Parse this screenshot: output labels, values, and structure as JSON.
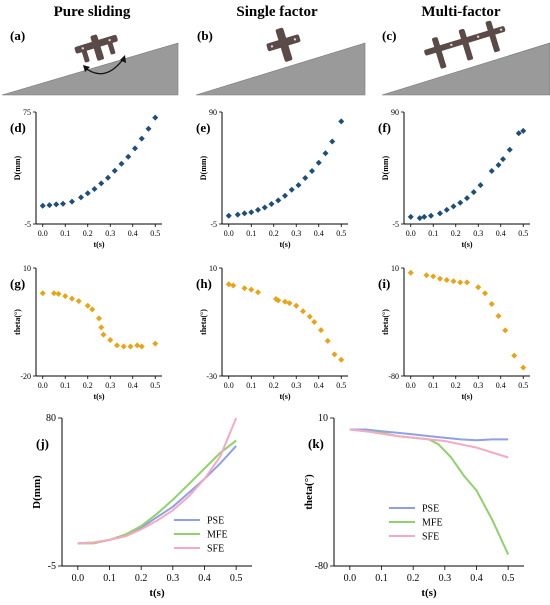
{
  "figure": {
    "column_titles": [
      "Pure sliding",
      "Single factor",
      "Multi-factor"
    ],
    "top_letters": [
      "(a)",
      "(b)",
      "(c)"
    ]
  },
  "colors": {
    "slope": "#9a9a9a",
    "slope_edge": "#777777",
    "robot": "#5a4a48",
    "blue": "#1f4e79",
    "orange": "#e8a317",
    "pse": "#8fa0e6",
    "mfe": "#8fd16a",
    "sfe": "#f5a9c3"
  },
  "chart_data": [
    {
      "id": "d",
      "letter": "(d)",
      "type": "scatter",
      "xlabel": "t(s)",
      "ylabel": "D(mm)",
      "xticks": [
        "0.0",
        "0.1",
        "0.2",
        "0.3",
        "0.4",
        "0.5"
      ],
      "xlim": [
        -0.03,
        0.53
      ],
      "yticks": [
        "-5",
        "75"
      ],
      "ylim": [
        -5,
        75
      ],
      "series": [
        {
          "color": "blue",
          "marker": "diamond",
          "x": [
            0.0,
            0.03,
            0.06,
            0.09,
            0.13,
            0.17,
            0.2,
            0.23,
            0.26,
            0.29,
            0.32,
            0.35,
            0.38,
            0.41,
            0.44,
            0.47,
            0.5
          ],
          "y": [
            8,
            8.5,
            9,
            9.5,
            11,
            14,
            17,
            20,
            24,
            28,
            33,
            38,
            43,
            49,
            56,
            63,
            71
          ]
        }
      ]
    },
    {
      "id": "e",
      "letter": "(e)",
      "type": "scatter",
      "xlabel": "t(s)",
      "ylabel": "D(mm)",
      "xticks": [
        "0.0",
        "0.1",
        "0.2",
        "0.3",
        "0.4",
        "0.5"
      ],
      "xlim": [
        -0.03,
        0.53
      ],
      "yticks": [
        "-5",
        "90"
      ],
      "ylim": [
        -5,
        90
      ],
      "series": [
        {
          "color": "blue",
          "marker": "diamond",
          "x": [
            0.0,
            0.04,
            0.07,
            0.1,
            0.13,
            0.16,
            0.19,
            0.22,
            0.25,
            0.28,
            0.31,
            0.34,
            0.37,
            0.4,
            0.43,
            0.46,
            0.5
          ],
          "y": [
            2,
            3,
            4,
            5,
            7,
            9,
            12,
            15,
            19,
            24,
            28,
            34,
            40,
            47,
            55,
            65,
            82
          ]
        }
      ]
    },
    {
      "id": "f",
      "letter": "(f)",
      "type": "scatter",
      "xlabel": "t(s)",
      "ylabel": "D(mm)",
      "xticks": [
        "0.0",
        "0.1",
        "0.2",
        "0.3",
        "0.4",
        "0.5"
      ],
      "xlim": [
        -0.03,
        0.53
      ],
      "yticks": [
        "-5",
        "90"
      ],
      "ylim": [
        -5,
        90
      ],
      "series": [
        {
          "color": "blue",
          "marker": "diamond",
          "x": [
            0.0,
            0.04,
            0.06,
            0.09,
            0.13,
            0.16,
            0.19,
            0.22,
            0.25,
            0.28,
            0.31,
            0.36,
            0.39,
            0.41,
            0.44,
            0.48,
            0.5
          ],
          "y": [
            1,
            0,
            1,
            2,
            4,
            7,
            10,
            13,
            17,
            22,
            28,
            40,
            45,
            50,
            58,
            72,
            74
          ]
        }
      ]
    },
    {
      "id": "g",
      "letter": "(g)",
      "type": "scatter",
      "xlabel": "t(s)",
      "ylabel": "theta(°)",
      "xticks": [
        "0.0",
        "0.1",
        "0.2",
        "0.3",
        "0.4",
        "0.5"
      ],
      "xlim": [
        -0.03,
        0.53
      ],
      "yticks": [
        "-20",
        "10"
      ],
      "ylim": [
        -20,
        10
      ],
      "series": [
        {
          "color": "orange",
          "marker": "diamond",
          "x": [
            0.0,
            0.05,
            0.07,
            0.1,
            0.13,
            0.16,
            0.2,
            0.22,
            0.25,
            0.26,
            0.27,
            0.3,
            0.33,
            0.36,
            0.39,
            0.42,
            0.44,
            0.5
          ],
          "y": [
            3,
            3,
            2.8,
            2.2,
            1.5,
            0.8,
            -0.5,
            -1.5,
            -4,
            -6.5,
            -8.5,
            -10,
            -11.5,
            -11.8,
            -11.8,
            -11.5,
            -11.8,
            -11
          ]
        }
      ]
    },
    {
      "id": "h",
      "letter": "(h)",
      "type": "scatter",
      "xlabel": "t(s)",
      "ylabel": "theta(°)",
      "xticks": [
        "0.0",
        "0.1",
        "0.2",
        "0.3",
        "0.4",
        "0.5"
      ],
      "xlim": [
        -0.03,
        0.53
      ],
      "yticks": [
        "-30",
        "10"
      ],
      "ylim": [
        -30,
        10
      ],
      "series": [
        {
          "color": "orange",
          "marker": "diamond",
          "x": [
            0.0,
            0.02,
            0.07,
            0.1,
            0.13,
            0.21,
            0.22,
            0.25,
            0.27,
            0.3,
            0.33,
            0.36,
            0.38,
            0.41,
            0.44,
            0.47,
            0.5
          ],
          "y": [
            4,
            3.5,
            2.5,
            2,
            1,
            -1.5,
            -2,
            -2.5,
            -3,
            -4,
            -6,
            -8,
            -10,
            -13,
            -17,
            -22,
            -24
          ]
        }
      ]
    },
    {
      "id": "i",
      "letter": "(i)",
      "type": "scatter",
      "xlabel": "t(s)",
      "ylabel": "theta(°)",
      "xticks": [
        "0.0",
        "0.1",
        "0.2",
        "0.3",
        "0.4",
        "0.5"
      ],
      "xlim": [
        -0.03,
        0.53
      ],
      "yticks": [
        "-80",
        "10"
      ],
      "ylim": [
        -80,
        10
      ],
      "series": [
        {
          "color": "orange",
          "marker": "diamond",
          "x": [
            0.0,
            0.07,
            0.1,
            0.13,
            0.16,
            0.19,
            0.22,
            0.25,
            0.3,
            0.33,
            0.36,
            0.39,
            0.42,
            0.46,
            0.5
          ],
          "y": [
            6,
            4,
            3,
            1,
            0,
            -1,
            -2,
            -2,
            -6,
            -11,
            -20,
            -30,
            -42,
            -63,
            -73
          ]
        }
      ]
    },
    {
      "id": "j",
      "letter": "(j)",
      "type": "line",
      "xlabel": "t(s)",
      "ylabel": "D(mm)",
      "xticks": [
        "0.0",
        "0.1",
        "0.2",
        "0.3",
        "0.4",
        "0.5"
      ],
      "xlim": [
        -0.05,
        0.55
      ],
      "yticks": [
        "-5",
        "80"
      ],
      "ylim": [
        -5,
        80
      ],
      "legend": {
        "placement": "bottom-right",
        "entries": [
          {
            "name": "PSE",
            "color": "pse"
          },
          {
            "name": "MFE",
            "color": "mfe"
          },
          {
            "name": "SFE",
            "color": "sfe"
          }
        ]
      },
      "series": [
        {
          "name": "PSE",
          "color": "pse",
          "x": [
            0,
            0.05,
            0.1,
            0.15,
            0.2,
            0.25,
            0.3,
            0.35,
            0.4,
            0.45,
            0.5
          ],
          "y": [
            8,
            8.5,
            10,
            13,
            17,
            23,
            29,
            37,
            45,
            54,
            64
          ]
        },
        {
          "name": "MFE",
          "color": "mfe",
          "x": [
            0,
            0.05,
            0.1,
            0.15,
            0.2,
            0.25,
            0.3,
            0.35,
            0.4,
            0.45,
            0.5
          ],
          "y": [
            8,
            8,
            10,
            13,
            18,
            25,
            33,
            42,
            51,
            60,
            67
          ]
        },
        {
          "name": "SFE",
          "color": "sfe",
          "x": [
            0,
            0.05,
            0.1,
            0.15,
            0.2,
            0.25,
            0.3,
            0.35,
            0.4,
            0.45,
            0.5
          ],
          "y": [
            8,
            8.5,
            10,
            12,
            16,
            21,
            27,
            35,
            45,
            58,
            80
          ]
        }
      ]
    },
    {
      "id": "k",
      "letter": "(k)",
      "type": "line",
      "xlabel": "t(s)",
      "ylabel": "theta(°)",
      "xticks": [
        "0.0",
        "0.1",
        "0.2",
        "0.3",
        "0.4",
        "0.5"
      ],
      "xlim": [
        -0.05,
        0.55
      ],
      "yticks": [
        "-80",
        "10"
      ],
      "ylim": [
        -80,
        10
      ],
      "legend": {
        "placement": "bottom-center",
        "entries": [
          {
            "name": "PSE",
            "color": "pse"
          },
          {
            "name": "MFE",
            "color": "mfe"
          },
          {
            "name": "SFE",
            "color": "sfe"
          }
        ]
      },
      "series": [
        {
          "name": "PSE",
          "color": "pse",
          "x": [
            0,
            0.05,
            0.1,
            0.15,
            0.2,
            0.25,
            0.3,
            0.35,
            0.4,
            0.45,
            0.5
          ],
          "y": [
            3,
            3,
            2,
            1,
            0,
            -1,
            -2,
            -3,
            -3.5,
            -3,
            -3
          ]
        },
        {
          "name": "MFE",
          "color": "mfe",
          "x": [
            0,
            0.05,
            0.1,
            0.15,
            0.2,
            0.25,
            0.28,
            0.32,
            0.36,
            0.4,
            0.45,
            0.5
          ],
          "y": [
            3,
            2,
            1,
            -1,
            -2,
            -3,
            -6,
            -14,
            -25,
            -34,
            -52,
            -73
          ]
        },
        {
          "name": "SFE",
          "color": "sfe",
          "x": [
            0,
            0.05,
            0.1,
            0.15,
            0.2,
            0.25,
            0.3,
            0.35,
            0.4,
            0.45,
            0.5
          ],
          "y": [
            3,
            2,
            0.5,
            -1,
            -2,
            -3,
            -4,
            -6,
            -8,
            -11,
            -14
          ]
        }
      ]
    }
  ]
}
